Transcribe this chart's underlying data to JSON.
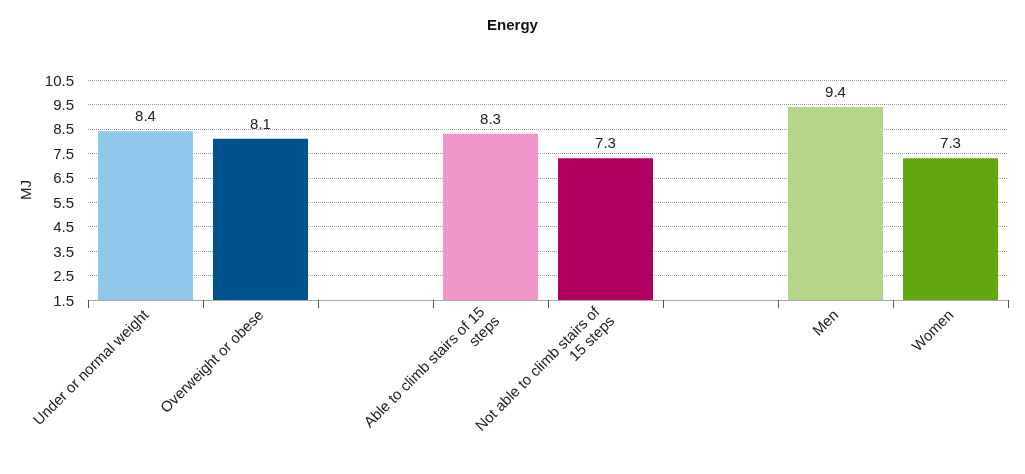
{
  "chart_data": {
    "type": "bar",
    "title": "Energy",
    "ylabel": "MJ",
    "categories": [
      "Under or normal weight",
      "Overweight or obese",
      null,
      "Able to climb stairs of 15 steps",
      "Not able to climb stairs of 15 steps",
      null,
      "Men",
      "Women"
    ],
    "values": [
      8.4,
      8.1,
      null,
      8.3,
      7.3,
      null,
      9.4,
      7.3
    ],
    "colors": [
      "#8fc8ea",
      "#00538a",
      null,
      "#f196cb",
      "#b0005f",
      null,
      "#b3d58a",
      "#62a70f"
    ],
    "ylim": [
      1.5,
      10.5
    ],
    "yticks": [
      1.5,
      2.5,
      3.5,
      4.5,
      5.5,
      6.5,
      7.5,
      8.5,
      9.5,
      10.5
    ],
    "grid": "y",
    "data_labels": true
  }
}
